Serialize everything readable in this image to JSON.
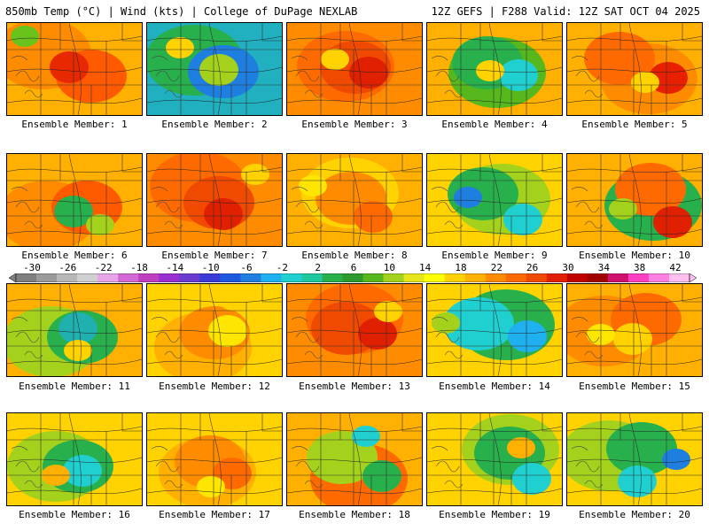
{
  "header": {
    "left": "850mb Temp (°C) | Wind (kts) | College of DuPage NEXLAB",
    "right": "12Z GEFS | F288 Valid: 12Z SAT OCT 04 2025"
  },
  "colorbar": {
    "labels": [
      "-30",
      "-26",
      "-22",
      "-18",
      "-14",
      "-10",
      "-6",
      "-2",
      "2",
      "6",
      "10",
      "14",
      "18",
      "22",
      "26",
      "30",
      "34",
      "38",
      "42"
    ],
    "colors": [
      "#7f7f7f",
      "#9a9a9a",
      "#b8b8b8",
      "#d0d0d0",
      "#e8a6e8",
      "#d36ad3",
      "#c03ec0",
      "#9a2fd0",
      "#6a3cd0",
      "#3b3bd6",
      "#1f58e0",
      "#1e7fe0",
      "#1fb0f0",
      "#20d0d0",
      "#20c8a0",
      "#28b04c",
      "#2c9a2c",
      "#56b81c",
      "#a4d21c",
      "#e6e61c",
      "#ffff00",
      "#ffd200",
      "#ffb000",
      "#ff8c00",
      "#ff6a00",
      "#f04a00",
      "#e02000",
      "#c00000",
      "#a00000",
      "#d0106e",
      "#ff40c0",
      "#ff80e0",
      "#ffc0f0"
    ]
  },
  "panels": [
    {
      "label": "Ensemble Member: 1"
    },
    {
      "label": "Ensemble Member: 2"
    },
    {
      "label": "Ensemble Member: 3"
    },
    {
      "label": "Ensemble Member: 4"
    },
    {
      "label": "Ensemble Member: 5"
    },
    {
      "label": "Ensemble Member: 6"
    },
    {
      "label": "Ensemble Member: 7"
    },
    {
      "label": "Ensemble Member: 8"
    },
    {
      "label": "Ensemble Member: 9"
    },
    {
      "label": "Ensemble Member: 10"
    },
    {
      "label": "Ensemble Member: 11"
    },
    {
      "label": "Ensemble Member: 12"
    },
    {
      "label": "Ensemble Member: 13"
    },
    {
      "label": "Ensemble Member: 14"
    },
    {
      "label": "Ensemble Member: 15"
    },
    {
      "label": "Ensemble Member: 16"
    },
    {
      "label": "Ensemble Member: 17"
    },
    {
      "label": "Ensemble Member: 18"
    },
    {
      "label": "Ensemble Member: 19"
    },
    {
      "label": "Ensemble Member: 20"
    }
  ]
}
